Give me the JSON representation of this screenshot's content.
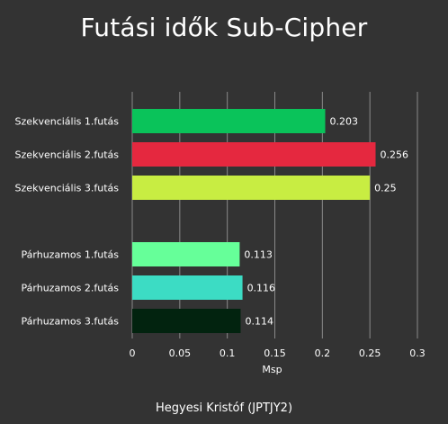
{
  "chart_data": {
    "type": "bar",
    "orientation": "horizontal",
    "title": "Futási idők Sub-Cipher",
    "xlabel": "Msp",
    "ylabel": "",
    "xlim": [
      0,
      0.3
    ],
    "x_ticks": [
      "0",
      "0.05",
      "0.1",
      "0.15",
      "0.2",
      "0.25",
      "0.3"
    ],
    "grid": true,
    "legend": "none",
    "groups": [
      {
        "bars": [
          {
            "category": "Szekvenciális 1.futás",
            "value": 0.203,
            "label": "0.203",
            "color": "#0ac35a"
          },
          {
            "category": "Szekvenciális 2.futás",
            "value": 0.256,
            "label": "0.256",
            "color": "#e5283f"
          },
          {
            "category": "Szekvenciális 3.futás",
            "value": 0.25,
            "label": "0.25",
            "color": "#c8ed42"
          }
        ]
      },
      {
        "bars": [
          {
            "category": "Párhuzamos 1.futás",
            "value": 0.113,
            "label": "0.113",
            "color": "#66ff99"
          },
          {
            "category": "Párhuzamos 2.futás",
            "value": 0.116,
            "label": "0.116",
            "color": "#3cdcc4"
          },
          {
            "category": "Párhuzamos 3.futás",
            "value": 0.114,
            "label": "0.114",
            "color": "#02230f"
          }
        ]
      }
    ]
  },
  "footer": {
    "author": "Hegyesi Kristóf (JPTJY2)"
  },
  "colors": {
    "background": "#333333",
    "gridline": "#8a8a8a",
    "text": "#ffffff"
  }
}
